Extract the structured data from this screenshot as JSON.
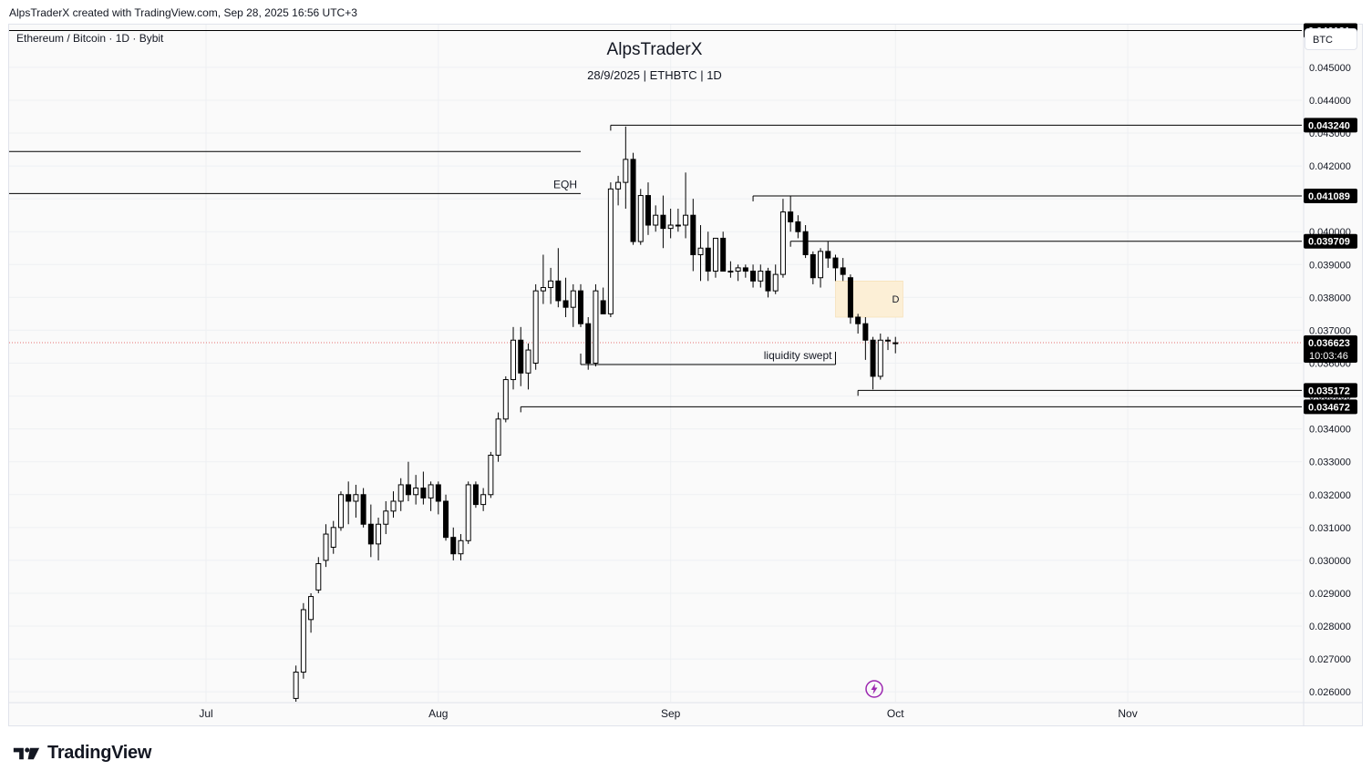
{
  "header": {
    "attribution": "AlpsTraderX created with TradingView.com, Sep 28, 2025 16:56 UTC+3",
    "symbol": "Ethereum / Bitcoin · 1D · Bybit",
    "currency": "BTC"
  },
  "footer": {
    "brand": "TradingView"
  },
  "icons": {
    "flash": "lightning-icon",
    "logo": "tradingview-logo-icon"
  },
  "colors": {
    "text": "#131722",
    "grid": "#eef0f3",
    "candle_up_fill": "#ffffff",
    "candle_down_fill": "#000000",
    "demand_zone": "#fcefd6",
    "last_price_line": "#e57373",
    "flash_icon": "#9c27b0"
  },
  "chart_data": {
    "type": "candlestick",
    "title": "AlpsTraderX",
    "subtitle": "28/9/2025 | ETHBTC | 1D",
    "y_axis": {
      "range": [
        0.0257,
        0.0463
      ],
      "ticks": [
        "0.026000",
        "0.027000",
        "0.028000",
        "0.029000",
        "0.030000",
        "0.031000",
        "0.032000",
        "0.033000",
        "0.034000",
        "0.035000",
        "0.036000",
        "0.037000",
        "0.038000",
        "0.039000",
        "0.040000",
        "0.041000",
        "0.042000",
        "0.043000",
        "0.044000",
        "0.045000"
      ]
    },
    "x_axis": {
      "ticks": [
        {
          "label": "Jul",
          "date": "2025-07-01"
        },
        {
          "label": "Aug",
          "date": "2025-08-01"
        },
        {
          "label": "Sep",
          "date": "2025-09-01"
        },
        {
          "label": "Oct",
          "date": "2025-10-01"
        },
        {
          "label": "Nov",
          "date": "2025-11-01"
        }
      ]
    },
    "price_labels": [
      {
        "value": 0.046121,
        "text": "0.046121"
      },
      {
        "value": 0.04324,
        "text": "0.043240"
      },
      {
        "value": 0.041089,
        "text": "0.041089"
      },
      {
        "value": 0.039709,
        "text": "0.039709"
      },
      {
        "value": 0.035172,
        "text": "0.035172"
      },
      {
        "value": 0.034672,
        "text": "0.034672"
      }
    ],
    "last_price": {
      "value": 0.036623,
      "text": "0.036623",
      "countdown": "10:03:46"
    },
    "levels": [
      {
        "price": 0.046121,
        "from_date": null
      },
      {
        "price": 0.04324,
        "from_date": "2025-08-24"
      },
      {
        "price": 0.041089,
        "from_date": "2025-09-12"
      },
      {
        "price": 0.039709,
        "from_date": "2025-09-17"
      },
      {
        "price": 0.035172,
        "from_date": "2025-09-26"
      },
      {
        "price": 0.034672,
        "from_date": "2025-08-12"
      }
    ],
    "segments": [
      {
        "price": 0.04244,
        "from_date": null,
        "to_date": "2025-08-20"
      },
      {
        "price": 0.04116,
        "from_date": null,
        "to_date": "2025-08-20",
        "label": "EQH"
      },
      {
        "price": 0.03596,
        "from_date": "2025-08-20",
        "to_date": "2025-09-23",
        "label": "liquidity swept"
      }
    ],
    "zone": {
      "from_date": "2025-09-23",
      "to_date": "2025-10-02",
      "top": 0.0385,
      "bottom": 0.0374,
      "label": "D"
    },
    "candles": [
      {
        "date": "2025-07-13",
        "o": 0.0258,
        "h": 0.0268,
        "l": 0.0257,
        "c": 0.0266
      },
      {
        "date": "2025-07-14",
        "o": 0.0266,
        "h": 0.0287,
        "l": 0.0264,
        "c": 0.0285
      },
      {
        "date": "2025-07-15",
        "o": 0.0282,
        "h": 0.029,
        "l": 0.0278,
        "c": 0.0289
      },
      {
        "date": "2025-07-16",
        "o": 0.0291,
        "h": 0.0301,
        "l": 0.029,
        "c": 0.0299
      },
      {
        "date": "2025-07-17",
        "o": 0.03,
        "h": 0.0311,
        "l": 0.0298,
        "c": 0.0308
      },
      {
        "date": "2025-07-18",
        "o": 0.0304,
        "h": 0.0312,
        "l": 0.0302,
        "c": 0.031
      },
      {
        "date": "2025-07-19",
        "o": 0.031,
        "h": 0.0321,
        "l": 0.0309,
        "c": 0.032
      },
      {
        "date": "2025-07-20",
        "o": 0.032,
        "h": 0.0324,
        "l": 0.0311,
        "c": 0.0318
      },
      {
        "date": "2025-07-21",
        "o": 0.0318,
        "h": 0.0323,
        "l": 0.0313,
        "c": 0.032
      },
      {
        "date": "2025-07-22",
        "o": 0.032,
        "h": 0.0322,
        "l": 0.031,
        "c": 0.0311
      },
      {
        "date": "2025-07-23",
        "o": 0.0311,
        "h": 0.0317,
        "l": 0.0301,
        "c": 0.0305
      },
      {
        "date": "2025-07-24",
        "o": 0.0305,
        "h": 0.0313,
        "l": 0.03,
        "c": 0.0311
      },
      {
        "date": "2025-07-25",
        "o": 0.0311,
        "h": 0.0318,
        "l": 0.0308,
        "c": 0.0315
      },
      {
        "date": "2025-07-26",
        "o": 0.0315,
        "h": 0.0321,
        "l": 0.0313,
        "c": 0.0318
      },
      {
        "date": "2025-07-27",
        "o": 0.0318,
        "h": 0.0325,
        "l": 0.0315,
        "c": 0.0323
      },
      {
        "date": "2025-07-28",
        "o": 0.0323,
        "h": 0.033,
        "l": 0.0318,
        "c": 0.032
      },
      {
        "date": "2025-07-29",
        "o": 0.032,
        "h": 0.0326,
        "l": 0.0317,
        "c": 0.0322
      },
      {
        "date": "2025-07-30",
        "o": 0.0322,
        "h": 0.0327,
        "l": 0.0317,
        "c": 0.0319
      },
      {
        "date": "2025-07-31",
        "o": 0.0319,
        "h": 0.0324,
        "l": 0.0315,
        "c": 0.0323
      },
      {
        "date": "2025-08-01",
        "o": 0.0323,
        "h": 0.0324,
        "l": 0.0314,
        "c": 0.0318
      },
      {
        "date": "2025-08-02",
        "o": 0.0318,
        "h": 0.032,
        "l": 0.0306,
        "c": 0.0307
      },
      {
        "date": "2025-08-03",
        "o": 0.0307,
        "h": 0.031,
        "l": 0.03,
        "c": 0.0302
      },
      {
        "date": "2025-08-04",
        "o": 0.0302,
        "h": 0.0308,
        "l": 0.03,
        "c": 0.0306
      },
      {
        "date": "2025-08-05",
        "o": 0.0306,
        "h": 0.0324,
        "l": 0.0305,
        "c": 0.0323
      },
      {
        "date": "2025-08-06",
        "o": 0.0323,
        "h": 0.0324,
        "l": 0.0316,
        "c": 0.0317
      },
      {
        "date": "2025-08-07",
        "o": 0.0317,
        "h": 0.0322,
        "l": 0.0315,
        "c": 0.032
      },
      {
        "date": "2025-08-08",
        "o": 0.032,
        "h": 0.0333,
        "l": 0.0319,
        "c": 0.0332
      },
      {
        "date": "2025-08-09",
        "o": 0.0332,
        "h": 0.0345,
        "l": 0.033,
        "c": 0.0343
      },
      {
        "date": "2025-08-10",
        "o": 0.0343,
        "h": 0.0356,
        "l": 0.0342,
        "c": 0.0355
      },
      {
        "date": "2025-08-11",
        "o": 0.0355,
        "h": 0.0371,
        "l": 0.0352,
        "c": 0.0367
      },
      {
        "date": "2025-08-12",
        "o": 0.0367,
        "h": 0.0371,
        "l": 0.0353,
        "c": 0.0357
      },
      {
        "date": "2025-08-13",
        "o": 0.0357,
        "h": 0.0366,
        "l": 0.0352,
        "c": 0.0364
      },
      {
        "date": "2025-08-14",
        "o": 0.036,
        "h": 0.0384,
        "l": 0.0358,
        "c": 0.0382
      },
      {
        "date": "2025-08-15",
        "o": 0.0382,
        "h": 0.0393,
        "l": 0.0378,
        "c": 0.0383
      },
      {
        "date": "2025-08-16",
        "o": 0.0383,
        "h": 0.0389,
        "l": 0.0378,
        "c": 0.0385
      },
      {
        "date": "2025-08-17",
        "o": 0.0385,
        "h": 0.0395,
        "l": 0.0377,
        "c": 0.0379
      },
      {
        "date": "2025-08-18",
        "o": 0.0379,
        "h": 0.0386,
        "l": 0.0374,
        "c": 0.0377
      },
      {
        "date": "2025-08-19",
        "o": 0.0377,
        "h": 0.0384,
        "l": 0.0371,
        "c": 0.0382
      },
      {
        "date": "2025-08-20",
        "o": 0.0382,
        "h": 0.0384,
        "l": 0.0371,
        "c": 0.0372
      },
      {
        "date": "2025-08-21",
        "o": 0.0372,
        "h": 0.0374,
        "l": 0.0358,
        "c": 0.036
      },
      {
        "date": "2025-08-22",
        "o": 0.036,
        "h": 0.0384,
        "l": 0.0359,
        "c": 0.0382
      },
      {
        "date": "2025-08-23",
        "o": 0.0379,
        "h": 0.0383,
        "l": 0.0375,
        "c": 0.0375
      },
      {
        "date": "2025-08-24",
        "o": 0.0375,
        "h": 0.0415,
        "l": 0.0374,
        "c": 0.0413
      },
      {
        "date": "2025-08-25",
        "o": 0.0413,
        "h": 0.0417,
        "l": 0.0408,
        "c": 0.0415
      },
      {
        "date": "2025-08-26",
        "o": 0.0415,
        "h": 0.0432,
        "l": 0.0407,
        "c": 0.0422
      },
      {
        "date": "2025-08-27",
        "o": 0.0422,
        "h": 0.0424,
        "l": 0.0396,
        "c": 0.0397
      },
      {
        "date": "2025-08-28",
        "o": 0.0397,
        "h": 0.0413,
        "l": 0.0396,
        "c": 0.0411
      },
      {
        "date": "2025-08-29",
        "o": 0.0411,
        "h": 0.0415,
        "l": 0.0399,
        "c": 0.0402
      },
      {
        "date": "2025-08-30",
        "o": 0.0402,
        "h": 0.0408,
        "l": 0.04,
        "c": 0.0405
      },
      {
        "date": "2025-08-31",
        "o": 0.0405,
        "h": 0.0411,
        "l": 0.0395,
        "c": 0.0401
      },
      {
        "date": "2025-09-01",
        "o": 0.0401,
        "h": 0.0407,
        "l": 0.0398,
        "c": 0.0402
      },
      {
        "date": "2025-09-02",
        "o": 0.0402,
        "h": 0.0407,
        "l": 0.04,
        "c": 0.0402
      },
      {
        "date": "2025-09-03",
        "o": 0.0402,
        "h": 0.0418,
        "l": 0.0398,
        "c": 0.0405
      },
      {
        "date": "2025-09-04",
        "o": 0.0405,
        "h": 0.041,
        "l": 0.0388,
        "c": 0.0393
      },
      {
        "date": "2025-09-05",
        "o": 0.0393,
        "h": 0.0402,
        "l": 0.0385,
        "c": 0.0395
      },
      {
        "date": "2025-09-06",
        "o": 0.0395,
        "h": 0.04,
        "l": 0.0385,
        "c": 0.0388
      },
      {
        "date": "2025-09-07",
        "o": 0.0388,
        "h": 0.0398,
        "l": 0.0386,
        "c": 0.0398
      },
      {
        "date": "2025-09-08",
        "o": 0.0398,
        "h": 0.04,
        "l": 0.0388,
        "c": 0.0388
      },
      {
        "date": "2025-09-09",
        "o": 0.0388,
        "h": 0.0391,
        "l": 0.0386,
        "c": 0.0388
      },
      {
        "date": "2025-09-10",
        "o": 0.0388,
        "h": 0.039,
        "l": 0.0385,
        "c": 0.0389
      },
      {
        "date": "2025-09-11",
        "o": 0.0389,
        "h": 0.039,
        "l": 0.0386,
        "c": 0.0388
      },
      {
        "date": "2025-09-12",
        "o": 0.0388,
        "h": 0.039,
        "l": 0.0383,
        "c": 0.0385
      },
      {
        "date": "2025-09-13",
        "o": 0.0385,
        "h": 0.039,
        "l": 0.0383,
        "c": 0.0388
      },
      {
        "date": "2025-09-14",
        "o": 0.0388,
        "h": 0.0389,
        "l": 0.038,
        "c": 0.0382
      },
      {
        "date": "2025-09-15",
        "o": 0.0382,
        "h": 0.039,
        "l": 0.0381,
        "c": 0.0387
      },
      {
        "date": "2025-09-16",
        "o": 0.0387,
        "h": 0.041,
        "l": 0.0386,
        "c": 0.0406
      },
      {
        "date": "2025-09-17",
        "o": 0.0406,
        "h": 0.0411,
        "l": 0.04,
        "c": 0.0403
      },
      {
        "date": "2025-09-18",
        "o": 0.0403,
        "h": 0.0405,
        "l": 0.0398,
        "c": 0.04
      },
      {
        "date": "2025-09-19",
        "o": 0.04,
        "h": 0.0402,
        "l": 0.0392,
        "c": 0.0393
      },
      {
        "date": "2025-09-20",
        "o": 0.0393,
        "h": 0.0394,
        "l": 0.0384,
        "c": 0.0386
      },
      {
        "date": "2025-09-21",
        "o": 0.0386,
        "h": 0.0395,
        "l": 0.0383,
        "c": 0.0394
      },
      {
        "date": "2025-09-22",
        "o": 0.0394,
        "h": 0.0397,
        "l": 0.0389,
        "c": 0.0392
      },
      {
        "date": "2025-09-23",
        "o": 0.0392,
        "h": 0.0393,
        "l": 0.0385,
        "c": 0.0389
      },
      {
        "date": "2025-09-24",
        "o": 0.0389,
        "h": 0.0392,
        "l": 0.0385,
        "c": 0.0387
      },
      {
        "date": "2025-09-25",
        "o": 0.0386,
        "h": 0.0387,
        "l": 0.0372,
        "c": 0.0374
      },
      {
        "date": "2025-09-26",
        "o": 0.0374,
        "h": 0.0375,
        "l": 0.0369,
        "c": 0.0372
      },
      {
        "date": "2025-09-27",
        "o": 0.0372,
        "h": 0.0374,
        "l": 0.0361,
        "c": 0.0367
      },
      {
        "date": "2025-09-28",
        "o": 0.0367,
        "h": 0.0368,
        "l": 0.0352,
        "c": 0.0356
      },
      {
        "date": "2025-09-29",
        "o": 0.0356,
        "h": 0.0369,
        "l": 0.0355,
        "c": 0.0367
      },
      {
        "date": "2025-09-30",
        "o": 0.0367,
        "h": 0.0368,
        "l": 0.0364,
        "c": 0.0367
      },
      {
        "date": "2025-10-01",
        "o": 0.0366,
        "h": 0.0368,
        "l": 0.0363,
        "c": 0.03662
      }
    ],
    "wick_marks": [
      {
        "date": "2025-06-03",
        "h": 0.0261,
        "l": 0.0258
      }
    ],
    "grid": true
  }
}
